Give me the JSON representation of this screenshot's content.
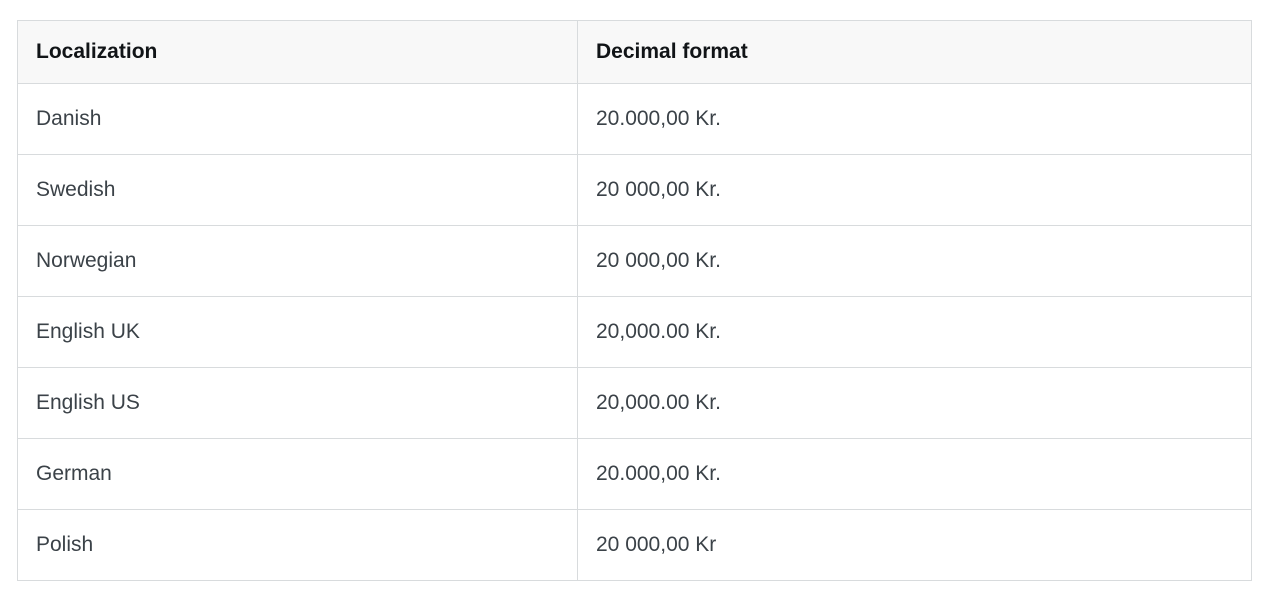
{
  "table": {
    "headers": {
      "localization": "Localization",
      "decimal_format": "Decimal format"
    },
    "rows": [
      {
        "localization": "Danish",
        "decimal_format": "20.000,00 Kr."
      },
      {
        "localization": "Swedish",
        "decimal_format": "20 000,00 Kr."
      },
      {
        "localization": "Norwegian",
        "decimal_format": "20 000,00 Kr."
      },
      {
        "localization": "English UK",
        "decimal_format": "20,000.00 Kr."
      },
      {
        "localization": "English US",
        "decimal_format": "20,000.00 Kr."
      },
      {
        "localization": "German",
        "decimal_format": "20.000,00 Kr."
      },
      {
        "localization": "Polish",
        "decimal_format": "20 000,00 Kr"
      }
    ],
    "colors": {
      "header_background": "#f8f8f8",
      "border": "#d8dbdd",
      "header_text": "#111417",
      "body_text": "#3b4248"
    }
  }
}
